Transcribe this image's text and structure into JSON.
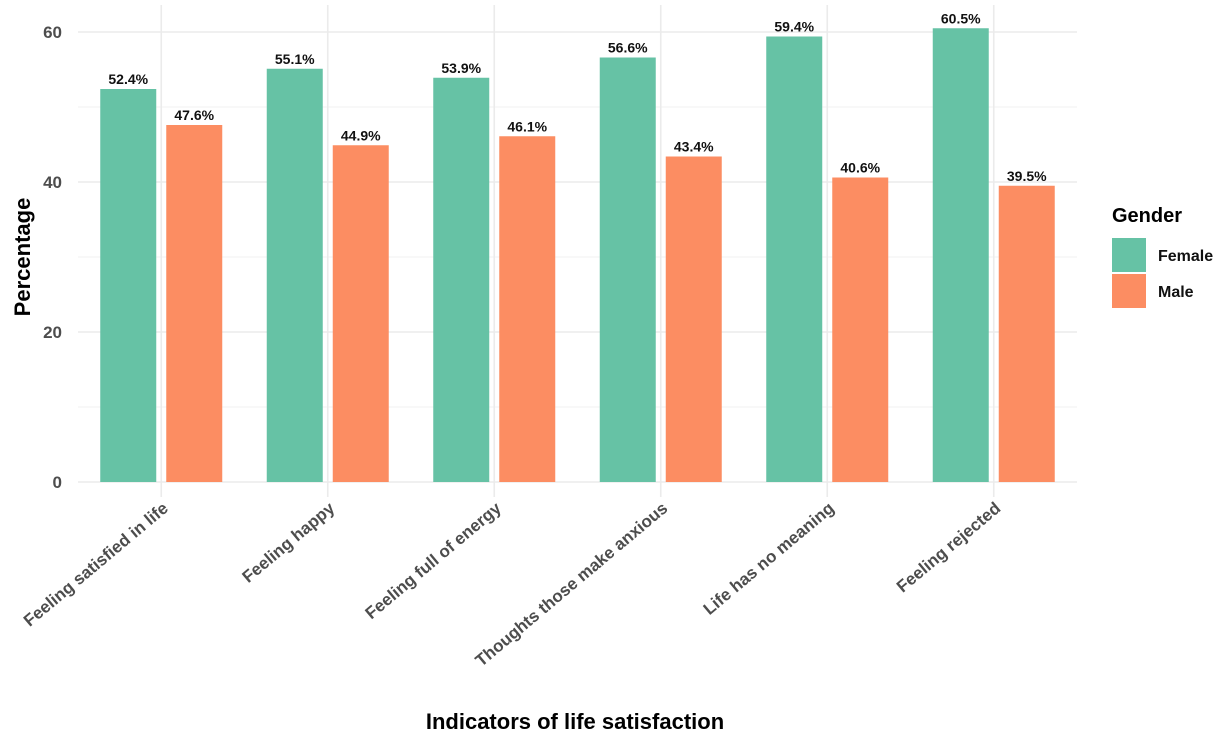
{
  "chart_data": {
    "type": "bar",
    "title": "",
    "xlabel": "Indicators of life satisfaction",
    "ylabel": "Percentage",
    "categories": [
      "Feeling satisfied in life",
      "Feeling happy",
      "Feeling full of energy",
      "Thoughts those make anxious",
      "Life has no meaning",
      "Feeling rejected"
    ],
    "series": [
      {
        "name": "Female",
        "color": "#66c2a5",
        "values": [
          52.4,
          55.1,
          53.9,
          56.6,
          59.4,
          60.5
        ],
        "labels": [
          "52.4%",
          "55.1%",
          "53.9%",
          "56.6%",
          "59.4%",
          "60.5%"
        ]
      },
      {
        "name": "Male",
        "color": "#fc8d62",
        "values": [
          47.6,
          44.9,
          46.1,
          43.4,
          40.6,
          39.5
        ],
        "labels": [
          "47.6%",
          "44.9%",
          "46.1%",
          "43.4%",
          "40.6%",
          "39.5%"
        ]
      }
    ],
    "yticks": [
      "0",
      "20",
      "40",
      "60"
    ],
    "ylim": [
      0,
      63
    ],
    "grid": true,
    "legend": {
      "title": "Gender",
      "position": "right"
    }
  }
}
